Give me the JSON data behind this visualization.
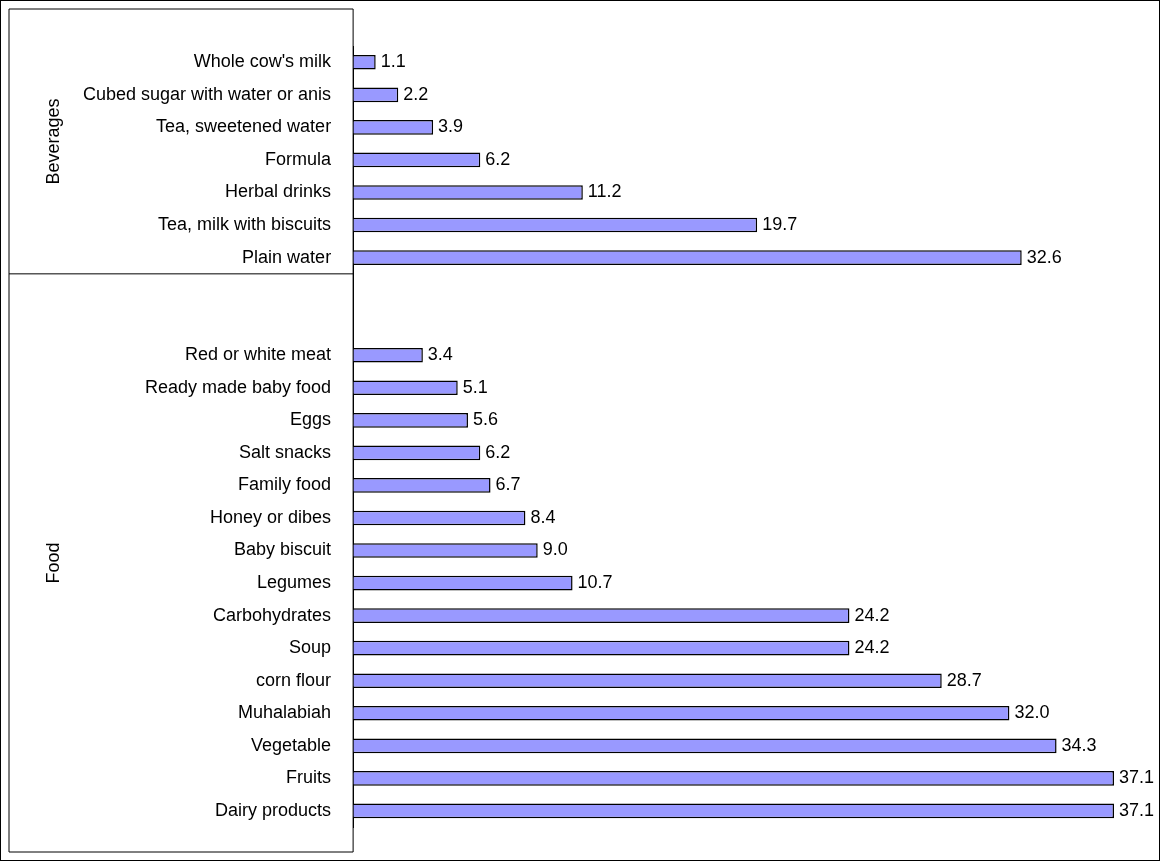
{
  "chart_data": {
    "type": "bar",
    "orientation": "horizontal",
    "categories": [
      "Whole cow's milk",
      "Cubed sugar with water or anis",
      "Tea, sweetened water",
      "Formula",
      "Herbal drinks",
      "Tea, milk with biscuits",
      "Plain water",
      null,
      null,
      "Red or white meat",
      "Ready made baby food",
      "Eggs",
      "Salt snacks",
      "Family food",
      "Honey or dibes",
      "Baby biscuit",
      "Legumes",
      "Carbohydrates",
      "Soup",
      "corn flour",
      "Muhalabiah",
      "Vegetable",
      "Fruits",
      "Dairy products"
    ],
    "values": [
      1.1,
      2.2,
      3.9,
      6.2,
      11.2,
      19.7,
      32.6,
      null,
      null,
      3.4,
      5.1,
      5.6,
      6.2,
      6.7,
      8.4,
      9.0,
      10.7,
      24.2,
      24.2,
      28.7,
      32.0,
      34.3,
      37.1,
      37.1
    ],
    "value_labels": [
      "1.1",
      "2.2",
      "3.9",
      "6.2",
      "11.2",
      "19.7",
      "32.6",
      null,
      null,
      "3.4",
      "5.1",
      "5.6",
      "6.2",
      "6.7",
      "8.4",
      "9.0",
      "10.7",
      "24.2",
      "24.2",
      "28.7",
      "32.0",
      "34.3",
      "37.1",
      "37.1"
    ],
    "color": "#9999ff",
    "annotations": [
      "Beverages",
      "Food"
    ],
    "legend": false,
    "tick_labels": "y"
  }
}
